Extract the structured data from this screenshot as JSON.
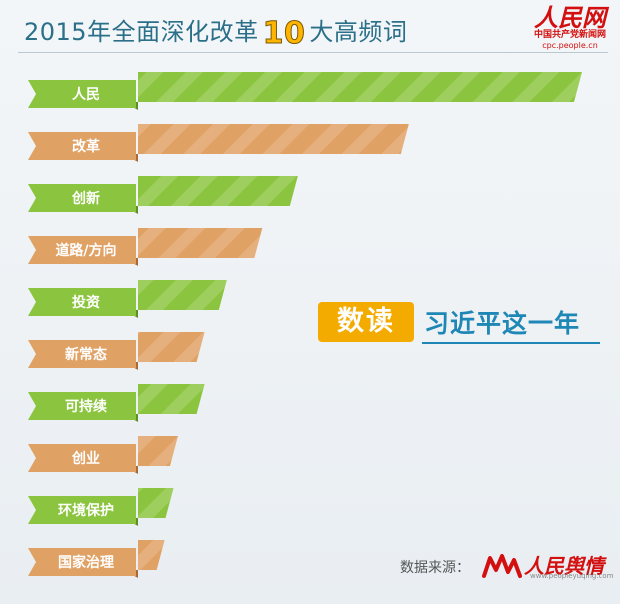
{
  "header": {
    "title_prefix": "2015年全面深化改革",
    "title_number": "10",
    "title_suffix": "大高频词",
    "logo_main": "人民网",
    "logo_sub": "中国共产党新闻网",
    "logo_url": "cpc.people.cn"
  },
  "headline": {
    "badge": "数读",
    "text": "习近平这一年"
  },
  "source": {
    "label": "数据来源：",
    "name": "人民舆情",
    "url": "www.peopleyuqing.com"
  },
  "colors": {
    "green": "#8bc53f",
    "green_dark": "#5f8f26",
    "orange": "#e0a164",
    "orange_dark": "#a86b36",
    "title": "#2c6f88",
    "accent": "#f4ab00"
  },
  "chart_data": {
    "type": "bar",
    "orientation": "horizontal",
    "title": "2015年全面深化改革10大高频词",
    "categories": [
      "人民",
      "改革",
      "创新",
      "道路/方向",
      "投资",
      "新常态",
      "可持续",
      "创业",
      "环境保护",
      "国家治理"
    ],
    "values": [
      100,
      61,
      36,
      28,
      20,
      15,
      15,
      9,
      8,
      6
    ],
    "value_scale": "relative, longest bar = 100",
    "axes_visible": false,
    "grid": false,
    "legend": "none"
  }
}
